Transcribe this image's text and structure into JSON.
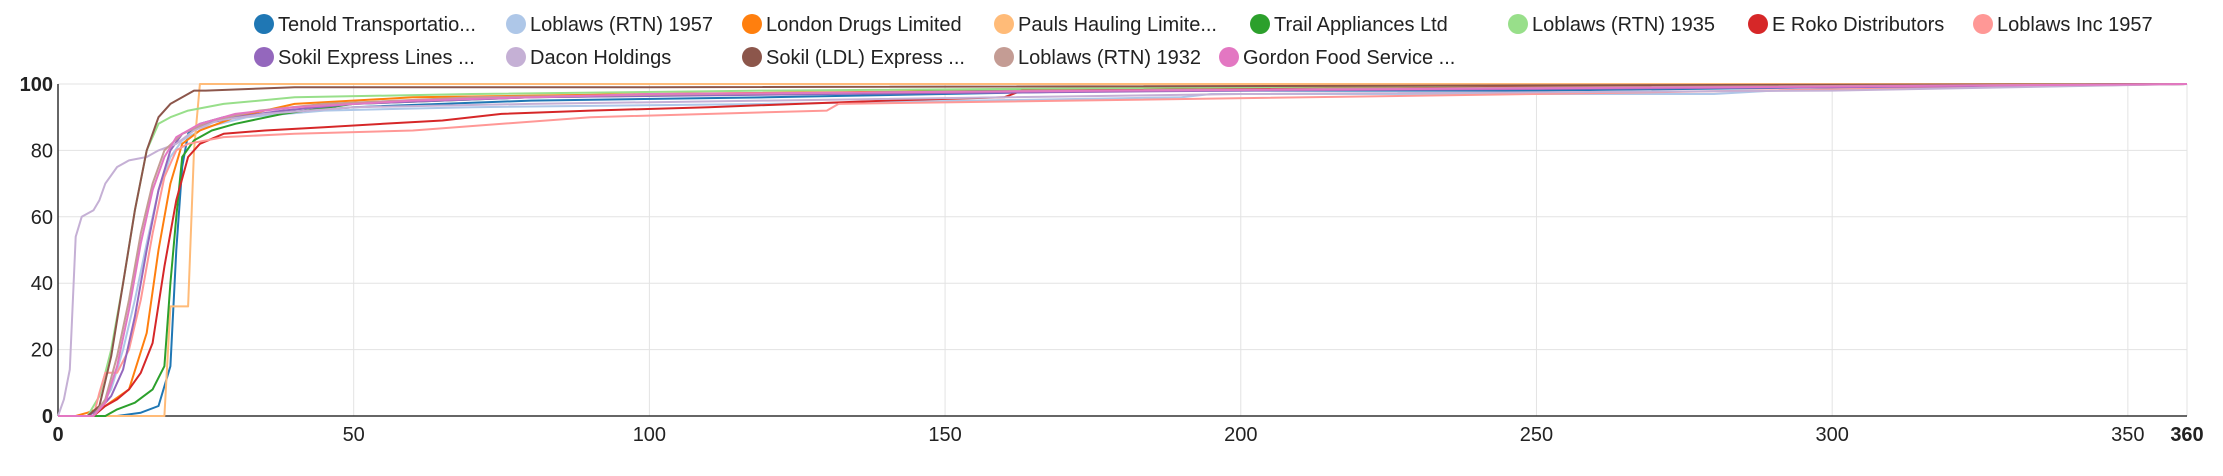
{
  "chart_data": {
    "type": "line",
    "title": "",
    "xlabel": "",
    "ylabel": "",
    "xlim": [
      0,
      360
    ],
    "ylim": [
      0,
      100
    ],
    "x_ticks": [
      0,
      50,
      100,
      150,
      200,
      250,
      300,
      350,
      360
    ],
    "y_ticks": [
      0,
      20,
      40,
      60,
      80,
      100
    ],
    "grid": true,
    "legend_position": "top",
    "series": [
      {
        "name": "Tenold Transportatio...",
        "color": "#1f77b4",
        "points": [
          [
            0,
            0
          ],
          [
            10,
            0
          ],
          [
            14,
            1
          ],
          [
            17,
            3
          ],
          [
            19,
            15
          ],
          [
            20,
            50
          ],
          [
            21,
            75
          ],
          [
            22,
            85
          ],
          [
            24,
            88
          ],
          [
            28,
            90
          ],
          [
            35,
            91
          ],
          [
            50,
            93
          ],
          [
            80,
            95
          ],
          [
            120,
            96
          ],
          [
            180,
            98
          ],
          [
            250,
            98
          ],
          [
            300,
            99
          ],
          [
            360,
            100
          ]
        ]
      },
      {
        "name": "Loblaws (RTN) 1957",
        "color": "#aec7e8",
        "points": [
          [
            0,
            0
          ],
          [
            5,
            0
          ],
          [
            7,
            2
          ],
          [
            9,
            8
          ],
          [
            11,
            20
          ],
          [
            13,
            35
          ],
          [
            15,
            52
          ],
          [
            17,
            68
          ],
          [
            19,
            78
          ],
          [
            21,
            83
          ],
          [
            25,
            87
          ],
          [
            32,
            90
          ],
          [
            45,
            92
          ],
          [
            70,
            93
          ],
          [
            120,
            94
          ],
          [
            190,
            96
          ],
          [
            195,
            97
          ],
          [
            280,
            97
          ],
          [
            290,
            98
          ],
          [
            360,
            100
          ]
        ]
      },
      {
        "name": "London Drugs Limited",
        "color": "#ff7f0e",
        "points": [
          [
            0,
            0
          ],
          [
            3,
            0
          ],
          [
            5,
            1
          ],
          [
            8,
            3
          ],
          [
            12,
            8
          ],
          [
            15,
            25
          ],
          [
            17,
            50
          ],
          [
            19,
            70
          ],
          [
            21,
            82
          ],
          [
            24,
            86
          ],
          [
            30,
            90
          ],
          [
            40,
            94
          ],
          [
            60,
            96
          ],
          [
            100,
            97
          ],
          [
            160,
            98
          ],
          [
            250,
            99
          ],
          [
            360,
            100
          ]
        ]
      },
      {
        "name": "Pauls Hauling Limite...",
        "color": "#ffbb78",
        "points": [
          [
            0,
            0
          ],
          [
            18,
            0
          ],
          [
            19,
            33
          ],
          [
            22,
            33
          ],
          [
            23,
            80
          ],
          [
            24,
            100
          ],
          [
            360,
            100
          ]
        ]
      },
      {
        "name": "Trail Appliances Ltd",
        "color": "#2ca02c",
        "points": [
          [
            0,
            0
          ],
          [
            8,
            0
          ],
          [
            10,
            2
          ],
          [
            13,
            4
          ],
          [
            16,
            8
          ],
          [
            18,
            15
          ],
          [
            19,
            40
          ],
          [
            20,
            60
          ],
          [
            21,
            78
          ],
          [
            23,
            83
          ],
          [
            26,
            86
          ],
          [
            30,
            88
          ],
          [
            38,
            91
          ],
          [
            50,
            94
          ],
          [
            80,
            96
          ],
          [
            120,
            97
          ],
          [
            160,
            98
          ],
          [
            250,
            99
          ],
          [
            360,
            100
          ]
        ]
      },
      {
        "name": "Loblaws (RTN) 1935",
        "color": "#98df8a",
        "points": [
          [
            0,
            0
          ],
          [
            5,
            0
          ],
          [
            7,
            6
          ],
          [
            9,
            20
          ],
          [
            11,
            40
          ],
          [
            13,
            62
          ],
          [
            15,
            80
          ],
          [
            17,
            88
          ],
          [
            19,
            90
          ],
          [
            22,
            92
          ],
          [
            28,
            94
          ],
          [
            40,
            96
          ],
          [
            70,
            97
          ],
          [
            120,
            98
          ],
          [
            200,
            99
          ],
          [
            360,
            100
          ]
        ]
      },
      {
        "name": "E Roko Distributors",
        "color": "#d62728",
        "points": [
          [
            0,
            0
          ],
          [
            6,
            0
          ],
          [
            8,
            3
          ],
          [
            10,
            5
          ],
          [
            12,
            8
          ],
          [
            14,
            13
          ],
          [
            16,
            22
          ],
          [
            18,
            45
          ],
          [
            20,
            65
          ],
          [
            22,
            78
          ],
          [
            24,
            82
          ],
          [
            28,
            85
          ],
          [
            35,
            86
          ],
          [
            45,
            87
          ],
          [
            55,
            88
          ],
          [
            65,
            89
          ],
          [
            75,
            91
          ],
          [
            90,
            92
          ],
          [
            110,
            93
          ],
          [
            140,
            95
          ],
          [
            160,
            96
          ],
          [
            163,
            98
          ],
          [
            250,
            99
          ],
          [
            360,
            100
          ]
        ]
      },
      {
        "name": "Loblaws Inc 1957",
        "color": "#ff9896",
        "points": [
          [
            0,
            0
          ],
          [
            6,
            0
          ],
          [
            7,
            7
          ],
          [
            8,
            13
          ],
          [
            10,
            13
          ],
          [
            12,
            20
          ],
          [
            14,
            35
          ],
          [
            16,
            55
          ],
          [
            18,
            72
          ],
          [
            20,
            80
          ],
          [
            22,
            82
          ],
          [
            28,
            84
          ],
          [
            40,
            85
          ],
          [
            60,
            86
          ],
          [
            90,
            90
          ],
          [
            130,
            92
          ],
          [
            132,
            94
          ],
          [
            250,
            97
          ],
          [
            360,
            100
          ]
        ]
      },
      {
        "name": "Sokil Express Lines ...",
        "color": "#9467bd",
        "points": [
          [
            0,
            0
          ],
          [
            5,
            0
          ],
          [
            7,
            2
          ],
          [
            9,
            6
          ],
          [
            11,
            14
          ],
          [
            13,
            30
          ],
          [
            15,
            50
          ],
          [
            17,
            68
          ],
          [
            19,
            80
          ],
          [
            21,
            85
          ],
          [
            25,
            88
          ],
          [
            30,
            90
          ],
          [
            38,
            92
          ],
          [
            50,
            94
          ],
          [
            80,
            96
          ],
          [
            130,
            97
          ],
          [
            200,
            98
          ],
          [
            300,
            99
          ],
          [
            360,
            100
          ]
        ]
      },
      {
        "name": "Dacon Holdings",
        "color": "#c5b0d5",
        "points": [
          [
            0,
            0
          ],
          [
            1,
            5
          ],
          [
            2,
            14
          ],
          [
            3,
            54
          ],
          [
            4,
            60
          ],
          [
            6,
            62
          ],
          [
            7,
            65
          ],
          [
            8,
            70
          ],
          [
            10,
            75
          ],
          [
            12,
            77
          ],
          [
            15,
            78
          ],
          [
            17,
            80
          ],
          [
            20,
            82
          ],
          [
            23,
            86
          ],
          [
            27,
            89
          ],
          [
            35,
            91
          ],
          [
            50,
            93
          ],
          [
            80,
            94
          ],
          [
            120,
            95
          ],
          [
            200,
            97
          ],
          [
            300,
            98
          ],
          [
            360,
            100
          ]
        ]
      },
      {
        "name": "Sokil (LDL) Express ...",
        "color": "#8c564b",
        "points": [
          [
            0,
            0
          ],
          [
            5,
            0
          ],
          [
            7,
            3
          ],
          [
            9,
            18
          ],
          [
            11,
            40
          ],
          [
            13,
            62
          ],
          [
            15,
            80
          ],
          [
            17,
            90
          ],
          [
            19,
            94
          ],
          [
            21,
            96
          ],
          [
            23,
            98
          ],
          [
            25,
            98
          ],
          [
            40,
            99
          ],
          [
            100,
            99
          ],
          [
            360,
            100
          ]
        ]
      },
      {
        "name": "Loblaws (RTN) 1932",
        "color": "#c49c94",
        "points": [
          [
            0,
            0
          ],
          [
            6,
            0
          ],
          [
            8,
            5
          ],
          [
            10,
            18
          ],
          [
            12,
            35
          ],
          [
            14,
            55
          ],
          [
            16,
            70
          ],
          [
            18,
            80
          ],
          [
            21,
            85
          ],
          [
            26,
            89
          ],
          [
            34,
            92
          ],
          [
            45,
            94
          ],
          [
            70,
            96
          ],
          [
            110,
            97
          ],
          [
            170,
            98
          ],
          [
            260,
            99
          ],
          [
            360,
            100
          ]
        ]
      },
      {
        "name": "Gordon Food Service ...",
        "color": "#e377c2",
        "points": [
          [
            0,
            0
          ],
          [
            6,
            0
          ],
          [
            8,
            4
          ],
          [
            10,
            15
          ],
          [
            12,
            32
          ],
          [
            14,
            52
          ],
          [
            16,
            68
          ],
          [
            18,
            78
          ],
          [
            20,
            84
          ],
          [
            24,
            88
          ],
          [
            30,
            91
          ],
          [
            40,
            93
          ],
          [
            60,
            95
          ],
          [
            100,
            97
          ],
          [
            180,
            98
          ],
          [
            280,
            99
          ],
          [
            360,
            100
          ]
        ]
      }
    ]
  }
}
